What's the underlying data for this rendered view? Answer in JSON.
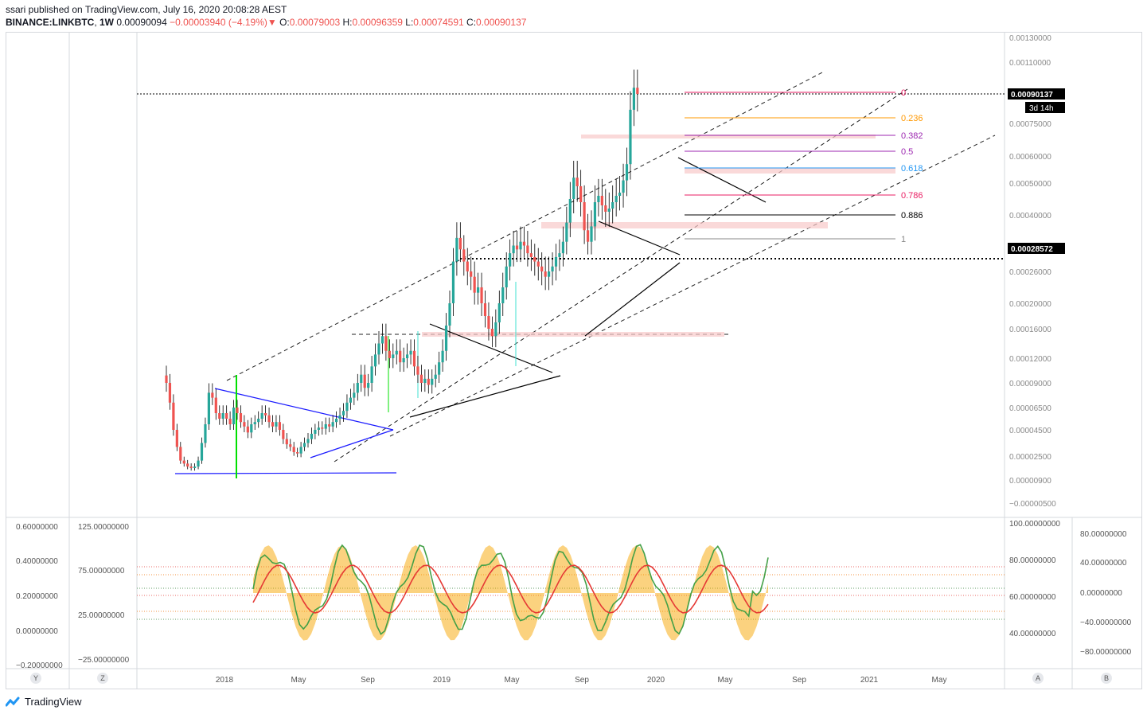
{
  "header": {
    "publisher_line": "ssari published on TradingView.com, July 16, 2020 20:08:28 AEST",
    "symbol": "BINANCE:LINKBTC",
    "interval": "1W",
    "last": "0.00090094",
    "change": "−0.00003940 (−4.19%)",
    "o_label": "O:",
    "o_value": "0.00079003",
    "h_label": "H:",
    "h_value": "0.00096359",
    "l_label": "L:",
    "l_value": "0.00074591",
    "c_label": "C:",
    "c_value": "0.00090137"
  },
  "colors": {
    "up": "#26a69a",
    "down": "#ef5350",
    "accent": "#f7a600",
    "bg": "#ffffff"
  },
  "chart_data": {
    "type": "candlestick",
    "symbol": "BINANCE:LINKBTC",
    "timeframe": "1W",
    "price_axis_ticks": [
      "0.00130000",
      "0.00110000",
      "0.00090137",
      "0.00075000",
      "0.00060000",
      "0.00050000",
      "0.00040000",
      "0.00028572",
      "0.00026000",
      "0.00020000",
      "0.00016000",
      "0.00012000",
      "0.00009000",
      "0.00006500",
      "0.00004500",
      "0.00002500",
      "0.00000900",
      "−0.00000500"
    ],
    "time_axis_ticks": [
      "2018",
      "May",
      "Sep",
      "2019",
      "May",
      "Sep",
      "2020",
      "May",
      "Sep",
      "2021",
      "May"
    ],
    "price_labels": [
      {
        "value": "0.00090137",
        "badge": "3d 14h"
      },
      {
        "value": "0.00028572"
      }
    ],
    "fib_levels": [
      {
        "ratio": "0",
        "color": "#e91e63"
      },
      {
        "ratio": "0.236",
        "color": "#ff9800"
      },
      {
        "ratio": "0.382",
        "color": "#9c27b0"
      },
      {
        "ratio": "0.5",
        "color": "#9c27b0"
      },
      {
        "ratio": "0.618",
        "color": "#2196f3"
      },
      {
        "ratio": "0.786",
        "color": "#e91e63"
      },
      {
        "ratio": "0.886",
        "color": "#000000"
      },
      {
        "ratio": "1",
        "color": "#888888"
      }
    ],
    "osc_left_outer_ticks": [
      "0.60000000",
      "0.40000000",
      "0.20000000",
      "0.00000000",
      "−0.20000000"
    ],
    "osc_left_inner_ticks": [
      "125.00000000",
      "75.00000000",
      "25.00000000",
      "−25.00000000"
    ],
    "osc_right_inner_ticks": [
      "100.00000000",
      "80.00000000",
      "60.00000000",
      "40.00000000"
    ],
    "osc_right_outer_ticks": [
      "80.00000000",
      "40.00000000",
      "0.00000000",
      "−40.00000000",
      "−80.00000000"
    ],
    "closes": [
      9e-05,
      7e-05,
      4.5e-05,
      3.2e-05,
      2.2e-05,
      2e-05,
      1.8e-05,
      1.7e-05,
      1.8e-05,
      2.2e-05,
      3.5e-05,
      5e-05,
      8e-05,
      7.5e-05,
      6e-05,
      5.5e-05,
      6e-05,
      5.5e-05,
      5e-05,
      6.5e-05,
      6e-05,
      5.2e-05,
      4.8e-05,
      4.3e-05,
      5e-05,
      5.2e-05,
      5.5e-05,
      6e-05,
      5.8e-05,
      5.2e-05,
      4.8e-05,
      5.2e-05,
      4.5e-05,
      3.8e-05,
      3.4e-05,
      3.2e-05,
      2.8e-05,
      2.7e-05,
      3.2e-05,
      3.5e-05,
      3.8e-05,
      4.2e-05,
      4.5e-05,
      4.7e-05,
      4.6e-05,
      5e-05,
      4.8e-05,
      5.2e-05,
      5.5e-05,
      5.8e-05,
      6.2e-05,
      7e-05,
      7.5e-05,
      8e-05,
      9e-05,
      0.0001,
      8.5e-05,
      9e-05,
      0.00011,
      0.000125,
      0.00014,
      0.00015,
      0.00013,
      0.00012,
      0.000125,
      0.00013,
      0.000115,
      0.00012,
      0.000125,
      0.00013,
      0.00011,
      0.0001,
      9e-05,
      9.5e-05,
      8.8e-05,
      9.5e-05,
      0.0001,
      0.000115,
      0.00013,
      0.000165,
      0.0002,
      0.00028,
      0.00034,
      0.00031,
      0.00028,
      0.00026,
      0.00025,
      0.00022,
      0.00023,
      0.0002,
      0.00018,
      0.00016,
      0.00015,
      0.00017,
      0.0002,
      0.00023,
      0.00027,
      0.0003,
      0.00032,
      0.00031,
      0.00033,
      0.00032,
      0.0003,
      0.00029,
      0.00028,
      0.00027,
      0.00026,
      0.00025,
      0.00026,
      0.00027,
      0.00029,
      0.0003,
      0.00033,
      0.00038,
      0.00045,
      0.00052,
      0.00049,
      0.00044,
      0.00036,
      0.00033,
      0.00037,
      0.00044,
      0.00046,
      0.00043,
      0.00041,
      0.00042,
      0.00044,
      0.00046,
      0.00047,
      0.00051,
      0.00057,
      0.00082,
      0.00094,
      0.00090137
    ]
  }
}
